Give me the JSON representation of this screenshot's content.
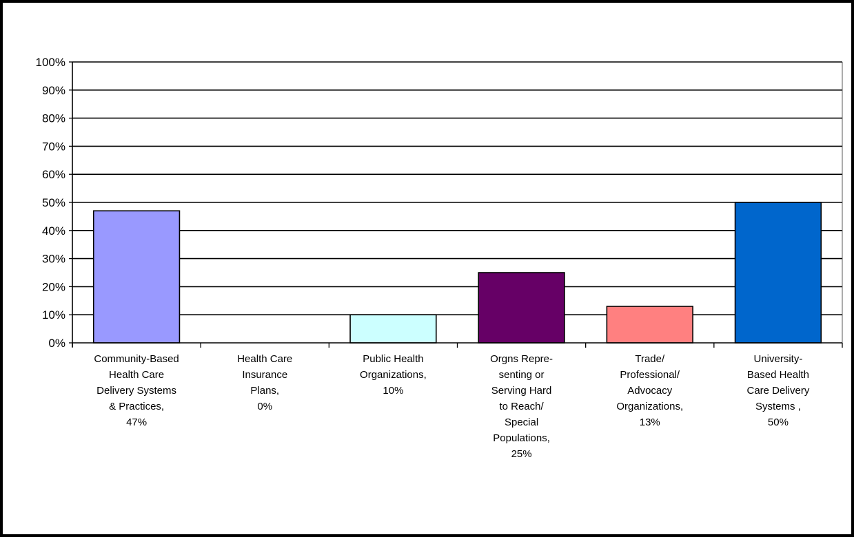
{
  "chart_data": {
    "type": "bar",
    "title": "",
    "xlabel": "",
    "ylabel": "",
    "ylim": [
      0,
      100
    ],
    "y_unit": "%",
    "yticks": [
      "0%",
      "10%",
      "20%",
      "30%",
      "40%",
      "50%",
      "60%",
      "70%",
      "80%",
      "90%",
      "100%"
    ],
    "grid": true,
    "legend": "none",
    "categories": [
      {
        "name": "Community-Based Health Care Delivery Systems & Practices",
        "label_lines": [
          "Community-Based",
          "Health Care",
          "Delivery Systems",
          "& Practices,",
          "47%"
        ],
        "value": 47,
        "color": "#9999FF"
      },
      {
        "name": "Health Care Insurance Plans",
        "label_lines": [
          "Health Care",
          "Insurance",
          "Plans,",
          "0%"
        ],
        "value": 0,
        "color": "#993366"
      },
      {
        "name": "Public Health Organizations",
        "label_lines": [
          "Public Health",
          "Organizations,",
          "10%"
        ],
        "value": 10,
        "color": "#CCFFFF"
      },
      {
        "name": "Orgns Representing or Serving Hard to Reach/ Special Populations",
        "label_lines": [
          "Orgns Repre-",
          "senting or",
          "Serving Hard",
          "to Reach/",
          "Special",
          "Populations,",
          "25%"
        ],
        "value": 25,
        "color": "#660066"
      },
      {
        "name": "Trade/ Professional/ Advocacy Organizations",
        "label_lines": [
          "Trade/",
          "Professional/",
          "Advocacy",
          "Organizations,",
          "13%"
        ],
        "value": 13,
        "color": "#FF8080"
      },
      {
        "name": "University-Based Health Care Delivery Systems",
        "label_lines": [
          "University-",
          "Based Health",
          "Care Delivery",
          "Systems ,",
          "50%"
        ],
        "value": 50,
        "color": "#0066CC"
      }
    ]
  }
}
